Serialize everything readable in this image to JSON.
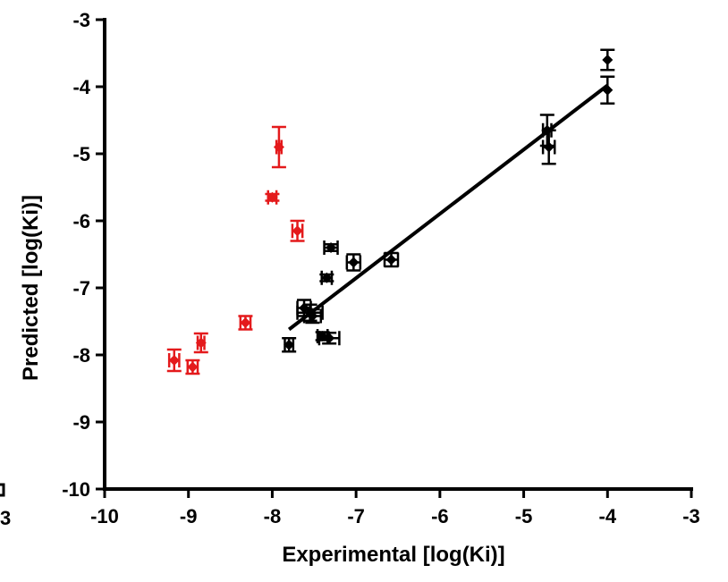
{
  "chart_data": {
    "type": "scatter",
    "xlabel": "Experimental [log(Ki)]",
    "ylabel": "Predicted [log(Ki)]",
    "xlim": [
      -10,
      -3
    ],
    "ylim": [
      -10,
      -3
    ],
    "x_ticks": [
      -10,
      -9,
      -8,
      -7,
      -6,
      -5,
      -4,
      -3
    ],
    "y_ticks": [
      -10,
      -9,
      -8,
      -7,
      -6,
      -5,
      -4,
      -3
    ],
    "x_tick_labels": [
      "-10",
      "-9",
      "-8",
      "-7",
      "-6",
      "-5",
      "-4",
      "-3"
    ],
    "y_tick_labels": [
      "-10",
      "-9",
      "-8",
      "-7",
      "-6",
      "-5",
      "-4",
      "-3"
    ],
    "grid": false,
    "legend": "none",
    "series": [
      {
        "color": "#000000",
        "marker": "diamond",
        "points": [
          {
            "x": -4.0,
            "y": -3.6,
            "xerr": 0.0,
            "yerr": 0.15
          },
          {
            "x": -4.0,
            "y": -4.05,
            "xerr": 0.0,
            "yerr": 0.2
          },
          {
            "x": -4.72,
            "y": -4.65,
            "xerr": 0.05,
            "yerr": 0.23
          },
          {
            "x": -4.7,
            "y": -4.9,
            "xerr": 0.07,
            "yerr": 0.25
          },
          {
            "x": -6.58,
            "y": -6.58,
            "xerr": 0.08,
            "yerr": 0.1
          },
          {
            "x": -7.03,
            "y": -6.62,
            "xerr": 0.08,
            "yerr": 0.12
          },
          {
            "x": -7.3,
            "y": -6.4,
            "xerr": 0.08,
            "yerr": 0.05
          },
          {
            "x": -7.35,
            "y": -6.85,
            "xerr": 0.06,
            "yerr": 0.05
          },
          {
            "x": -7.62,
            "y": -7.3,
            "xerr": 0.08,
            "yerr": 0.12
          },
          {
            "x": -7.55,
            "y": -7.37,
            "xerr": 0.15,
            "yerr": 0.12
          },
          {
            "x": -7.52,
            "y": -7.42,
            "xerr": 0.1,
            "yerr": 0.1
          },
          {
            "x": -7.32,
            "y": -7.75,
            "xerr": 0.12,
            "yerr": 0.08
          },
          {
            "x": -7.4,
            "y": -7.72,
            "xerr": 0.06,
            "yerr": 0.06
          },
          {
            "x": -7.8,
            "y": -7.85,
            "xerr": 0.05,
            "yerr": 0.1
          }
        ]
      },
      {
        "color": "#e41a1c",
        "marker": "diamond",
        "points": [
          {
            "x": -7.92,
            "y": -4.9,
            "xerr": 0.03,
            "yerr": 0.3
          },
          {
            "x": -8.0,
            "y": -5.65,
            "xerr": 0.05,
            "yerr": 0.05
          },
          {
            "x": -7.7,
            "y": -6.15,
            "xerr": 0.06,
            "yerr": 0.15
          },
          {
            "x": -8.32,
            "y": -7.52,
            "xerr": 0.06,
            "yerr": 0.1
          },
          {
            "x": -8.85,
            "y": -7.82,
            "xerr": 0.04,
            "yerr": 0.14
          },
          {
            "x": -9.17,
            "y": -8.08,
            "xerr": 0.06,
            "yerr": 0.16
          },
          {
            "x": -8.95,
            "y": -8.18,
            "xerr": 0.06,
            "yerr": 0.1
          }
        ]
      }
    ],
    "regression_line": {
      "x": [
        -7.8,
        -4.0
      ],
      "y": [
        -7.62,
        -3.98
      ],
      "color": "#000000"
    }
  },
  "edge_marks": [
    "3"
  ]
}
